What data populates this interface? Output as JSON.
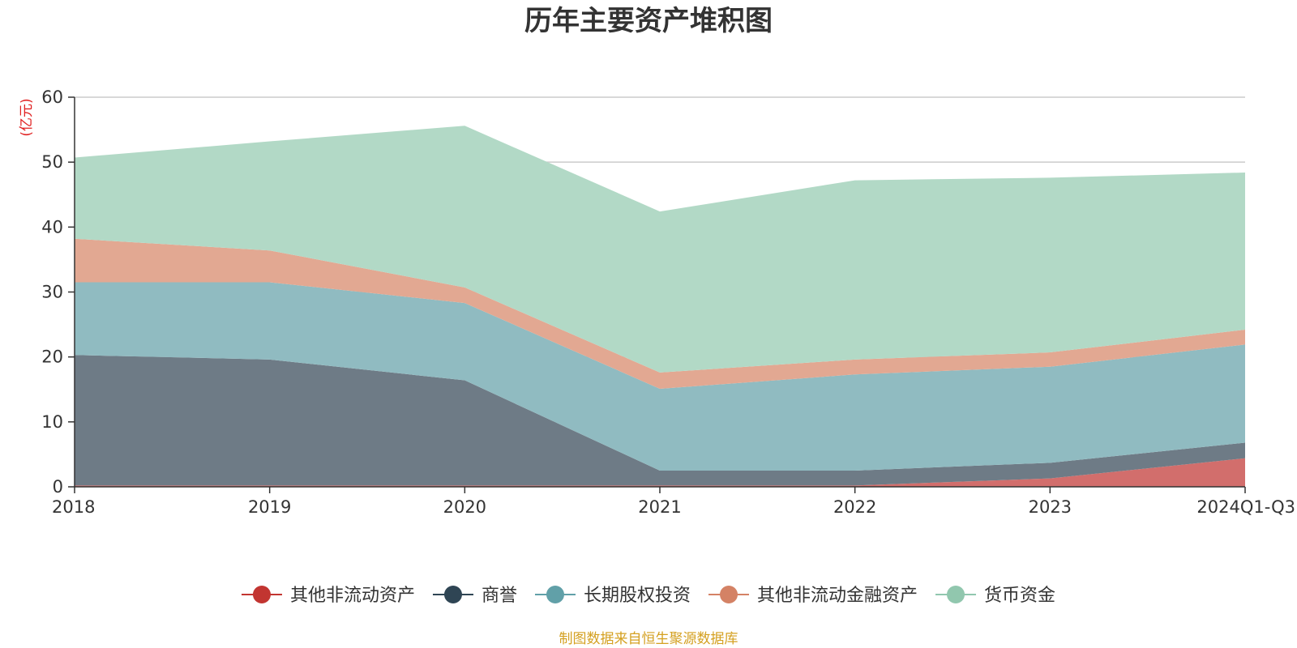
{
  "chart_data": {
    "type": "area",
    "stacked": true,
    "title": "历年主要资产堆积图",
    "y_unit": "(亿元)",
    "categories": [
      "2018",
      "2019",
      "2020",
      "2021",
      "2022",
      "2023",
      "2024Q1-Q3"
    ],
    "ylim": [
      0,
      60
    ],
    "yticks": [
      0,
      10,
      20,
      30,
      40,
      50,
      60
    ],
    "grid": true,
    "legend_position": "bottom",
    "series": [
      {
        "name": "其他非流动资产",
        "color": "#c23531",
        "fill": "#d26e6c",
        "values": [
          0.2,
          0.2,
          0.2,
          0.2,
          0.2,
          1.3,
          4.4
        ]
      },
      {
        "name": "商誉",
        "color": "#2f4554",
        "fill": "#6e7b86",
        "values": [
          20.1,
          19.4,
          16.2,
          2.3,
          2.3,
          2.4,
          2.4
        ]
      },
      {
        "name": "长期股权投资",
        "color": "#61a0a8",
        "fill": "#90bbc1",
        "values": [
          11.2,
          11.9,
          11.9,
          12.6,
          14.8,
          14.8,
          15.1
        ]
      },
      {
        "name": "其他非流动金融资产",
        "color": "#d48265",
        "fill": "#e2a892",
        "values": [
          6.7,
          4.9,
          2.4,
          2.5,
          2.3,
          2.2,
          2.3
        ]
      },
      {
        "name": "货币资金",
        "color": "#91c7ae",
        "fill": "#b2d9c6",
        "values": [
          12.5,
          16.8,
          24.9,
          24.8,
          27.6,
          26.9,
          24.2
        ]
      }
    ]
  },
  "footer": {
    "source": "制图数据来自恒生聚源数据库"
  },
  "colors": {
    "axis": "#333333",
    "grid": "#cccccc",
    "unit": "#e02020",
    "source": "#d4a020"
  }
}
